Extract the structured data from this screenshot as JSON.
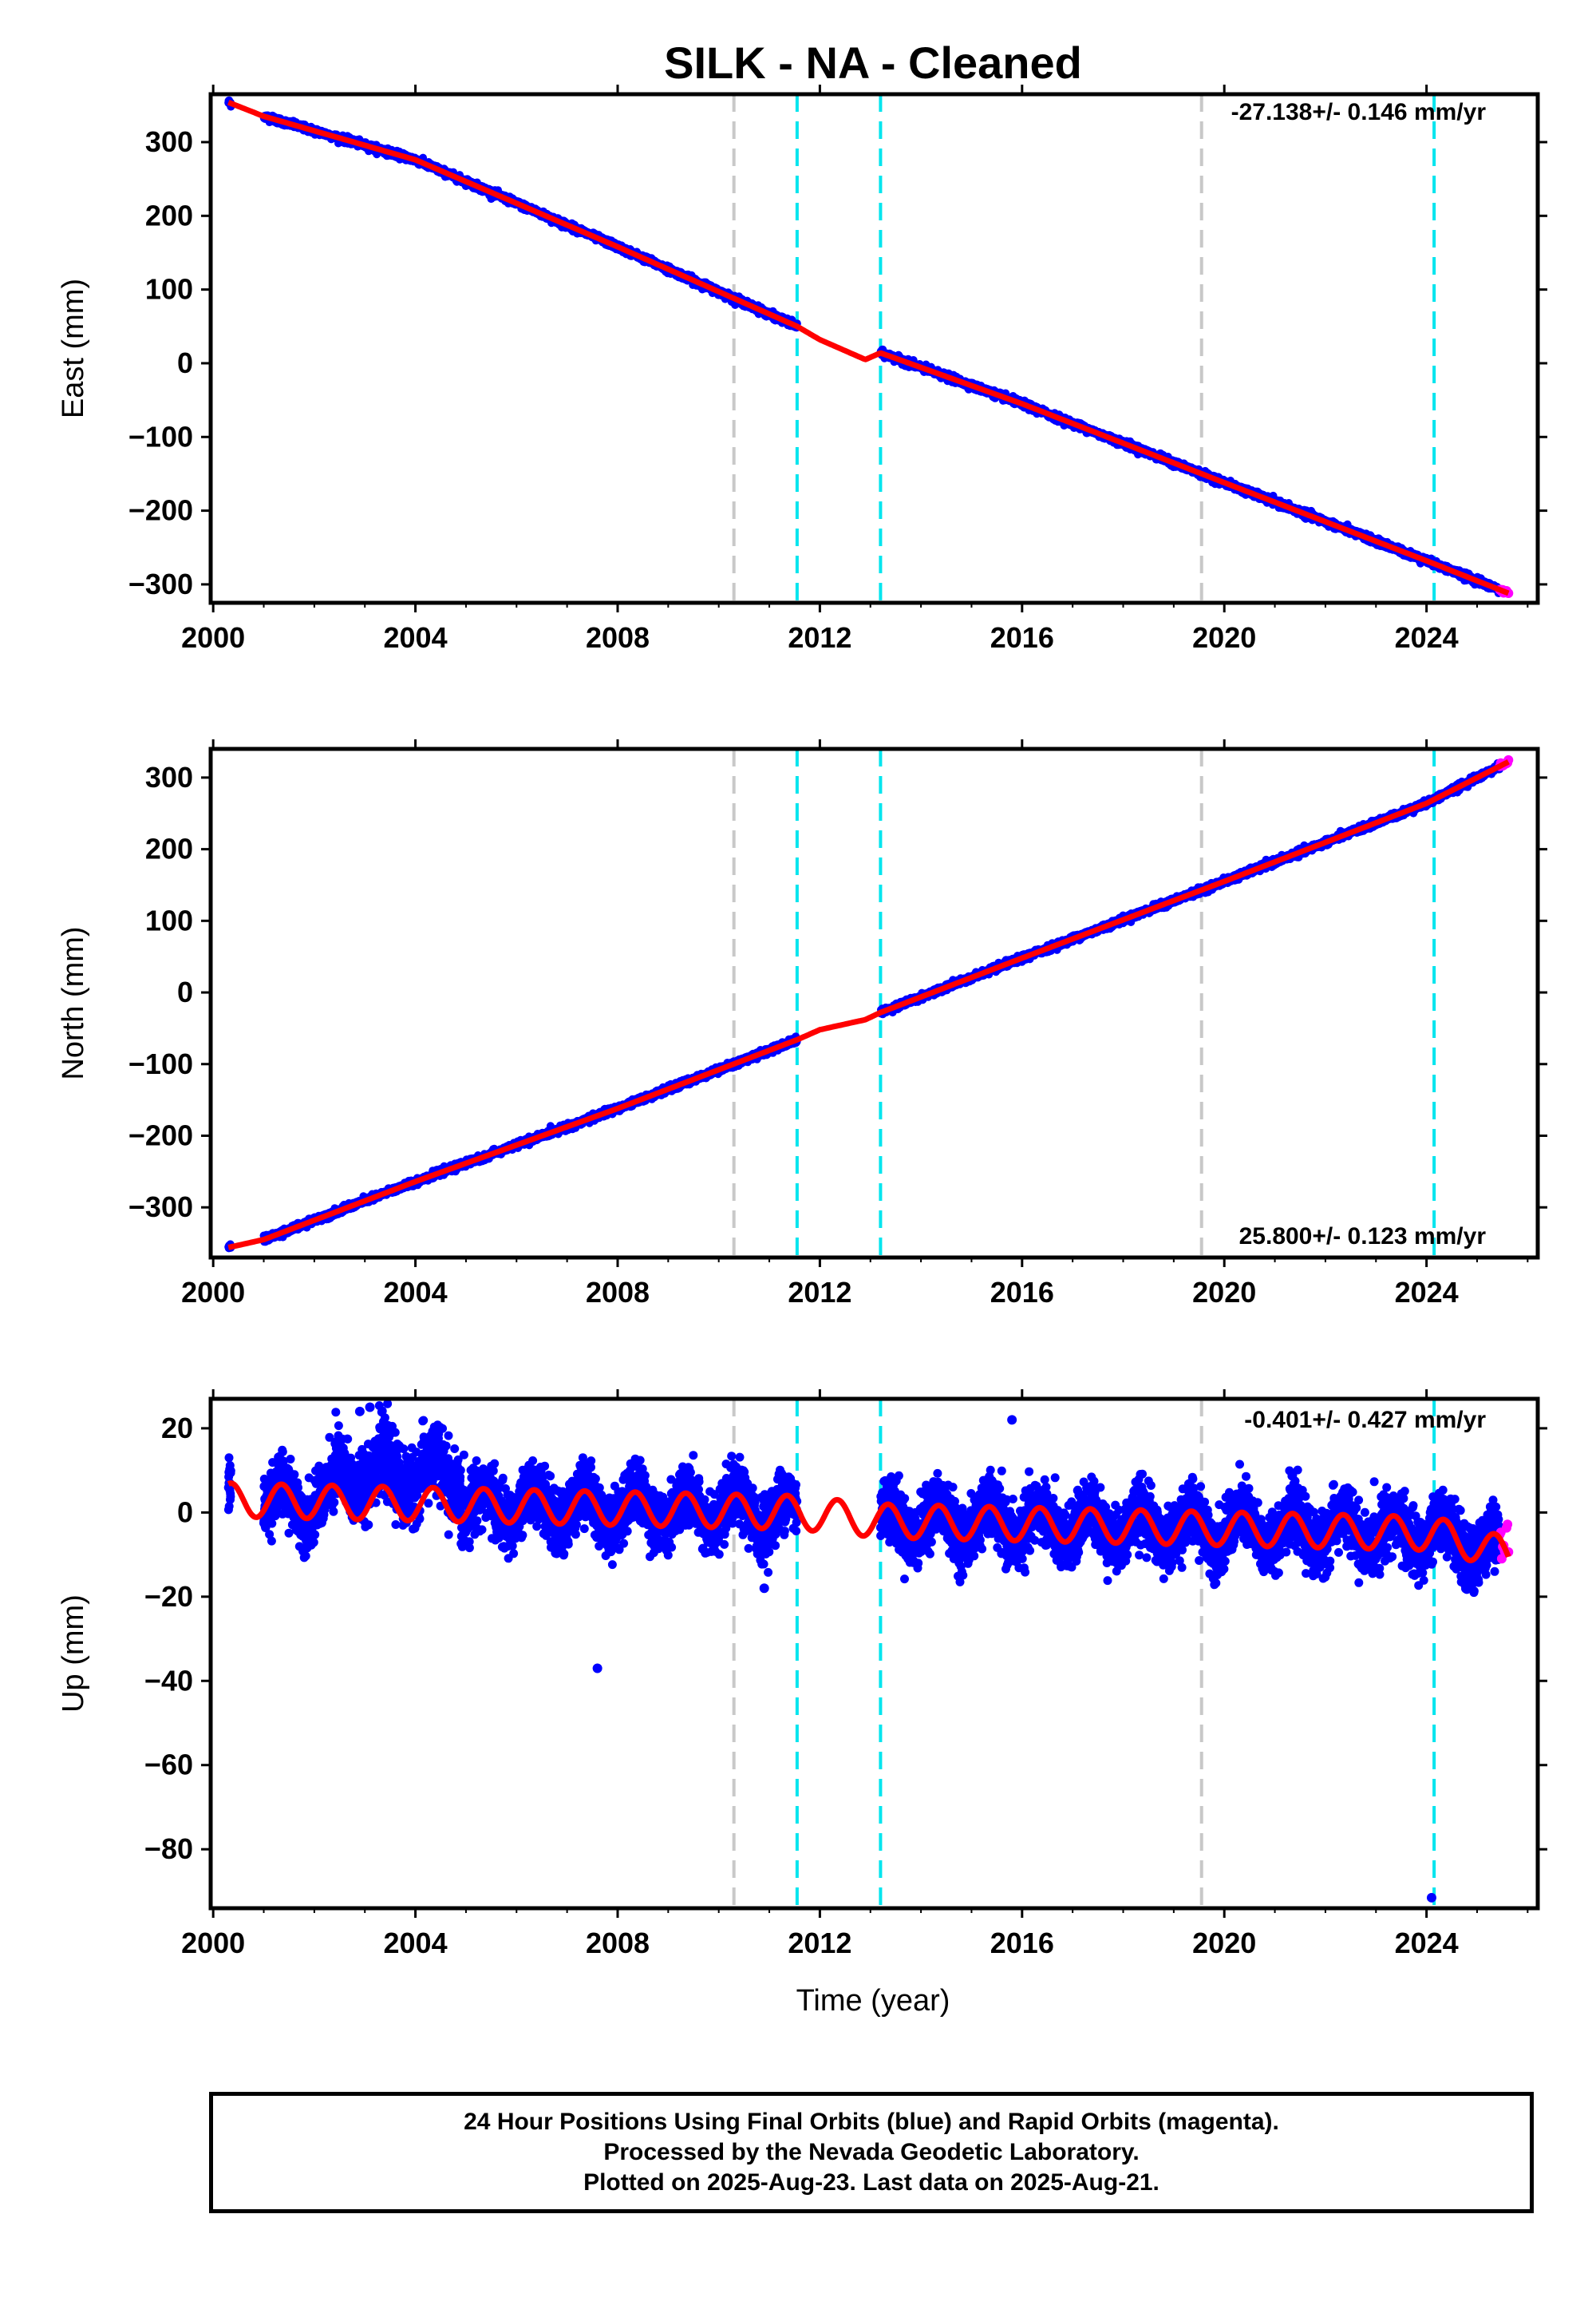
{
  "title": "SILK  - NA - Cleaned",
  "xlabel": "Time (year)",
  "footer": {
    "line1": "24 Hour Positions Using Final Orbits (blue) and Rapid Orbits (magenta).",
    "line2": "Processed by the Nevada Geodetic Laboratory.",
    "line3": "Plotted on 2025-Aug-23. Last data on 2025-Aug-21."
  },
  "colors": {
    "final": "#0000ff",
    "rapid": "#ff00ff",
    "model": "#ff0000",
    "equipment_change": "#00e5ee",
    "earthquake": "#c8c8c8"
  },
  "event_lines": {
    "gray": [
      2010.3,
      2019.55
    ],
    "cyan": [
      2011.55,
      2013.2,
      2024.15
    ]
  },
  "chart_data": [
    {
      "type": "scatter",
      "name": "east",
      "ylabel": "East (mm)",
      "rate": "-27.138+/- 0.146 mm/yr",
      "xlim": [
        1999.95,
        2026.2
      ],
      "ylim": [
        -325,
        365
      ],
      "xticks": [
        "2000",
        "2004",
        "2008",
        "2012",
        "2016",
        "2020",
        "2024"
      ],
      "yticks": [
        "300",
        "200",
        "100",
        "0",
        "−100",
        "−200",
        "−300"
      ],
      "ytick_values": [
        300,
        200,
        100,
        0,
        -100,
        -200,
        -300
      ],
      "data_ranges": [
        [
          2000.3,
          2000.35
        ],
        [
          2001.0,
          2011.55
        ],
        [
          2013.2,
          2025.45
        ]
      ],
      "rapid_range": [
        2025.45,
        2025.62
      ],
      "model": [
        [
          2000.3,
          354
        ],
        [
          2001.0,
          335
        ],
        [
          2004.0,
          276
        ],
        [
          2008.0,
          158
        ],
        [
          2011.55,
          50
        ],
        [
          2012.0,
          32
        ],
        [
          2012.9,
          5
        ],
        [
          2013.2,
          14
        ],
        [
          2016.0,
          -55
        ],
        [
          2020.0,
          -162
        ],
        [
          2024.0,
          -268
        ],
        [
          2025.62,
          -312
        ]
      ]
    },
    {
      "type": "scatter",
      "name": "north",
      "ylabel": "North (mm)",
      "rate": "25.800+/- 0.123 mm/yr",
      "xlim": [
        1999.95,
        2026.2
      ],
      "ylim": [
        -370,
        340
      ],
      "xticks": [
        "2000",
        "2004",
        "2008",
        "2012",
        "2016",
        "2020",
        "2024"
      ],
      "yticks": [
        "300",
        "200",
        "100",
        "0",
        "−100",
        "−200",
        "−300"
      ],
      "ytick_values": [
        300,
        200,
        100,
        0,
        -100,
        -200,
        -300
      ],
      "data_ranges": [
        [
          2000.3,
          2000.35
        ],
        [
          2001.0,
          2011.55
        ],
        [
          2013.2,
          2025.45
        ]
      ],
      "rapid_range": [
        2025.45,
        2025.62
      ],
      "model": [
        [
          2000.3,
          -356
        ],
        [
          2001.0,
          -345
        ],
        [
          2004.0,
          -264
        ],
        [
          2008.0,
          -162
        ],
        [
          2011.55,
          -66
        ],
        [
          2012.0,
          -52
        ],
        [
          2012.9,
          -38
        ],
        [
          2013.2,
          -28
        ],
        [
          2016.0,
          48
        ],
        [
          2020.0,
          155
        ],
        [
          2024.0,
          264
        ],
        [
          2025.62,
          322
        ]
      ]
    },
    {
      "type": "scatter",
      "name": "up",
      "ylabel": "Up (mm)",
      "rate": "-0.401+/- 0.427 mm/yr",
      "xlim": [
        1999.95,
        2026.2
      ],
      "ylim": [
        -94,
        27
      ],
      "xticks": [
        "2000",
        "2004",
        "2008",
        "2012",
        "2016",
        "2020",
        "2024"
      ],
      "yticks": [
        "20",
        "0",
        "−20",
        "−40",
        "−60",
        "−80"
      ],
      "ytick_values": [
        20,
        0,
        -20,
        -40,
        -60,
        -80
      ],
      "data_ranges": [
        [
          2000.3,
          2000.35
        ],
        [
          2001.0,
          2011.55
        ],
        [
          2013.2,
          2025.45
        ]
      ],
      "rapid_range": [
        2025.45,
        2025.62
      ],
      "outliers": [
        [
          2000.32,
          7
        ],
        [
          2007.6,
          -37
        ],
        [
          2010.9,
          -18
        ],
        [
          2024.1,
          -91.5
        ],
        [
          2002.9,
          24
        ],
        [
          2003.1,
          25
        ],
        [
          2015.8,
          22
        ]
      ],
      "seasonal_amplitude": 4,
      "model_offsets": [
        [
          2000.3,
          3
        ],
        [
          2011.55,
          0
        ],
        [
          2013.2,
          -2
        ],
        [
          2024.15,
          -5
        ],
        [
          2025.62,
          -10
        ]
      ]
    }
  ]
}
